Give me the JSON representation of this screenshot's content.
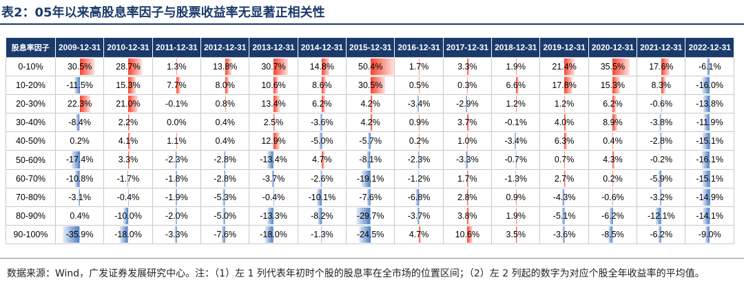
{
  "title": "表2：05年以来高股息率因子与股票收益率无显著正相关性",
  "note": "数据来源：Wind，广发证券发展研究中心。注：（1）左 1 列代表年初时个股的股息率在全市场的位置区间；（2）左 2 列起的数字为对应个股全年收益率的平均值。",
  "chart_data": {
    "type": "table",
    "corner_label": "股息率因子",
    "columns": [
      "2009-12-31",
      "2010-12-31",
      "2011-12-31",
      "2012-12-31",
      "2013-12-31",
      "2014-12-31",
      "2015-12-31",
      "2016-12-31",
      "2017-12-31",
      "2018-12-31",
      "2019-12-31",
      "2020-12-31",
      "2021-12-31",
      "2022-12-31"
    ],
    "rows": [
      {
        "label": "0-10%",
        "values": [
          30.5,
          28.7,
          1.3,
          13.8,
          30.7,
          14.8,
          50.4,
          1.7,
          3.3,
          1.9,
          21.4,
          35.5,
          17.6,
          -6.1
        ]
      },
      {
        "label": "10-20%",
        "values": [
          -11.5,
          15.3,
          7.7,
          8.0,
          10.6,
          8.6,
          30.5,
          0.5,
          0.3,
          6.6,
          17.8,
          15.3,
          8.3,
          -16.0
        ]
      },
      {
        "label": "20-30%",
        "values": [
          22.3,
          21.0,
          -0.1,
          0.8,
          13.4,
          6.2,
          4.2,
          -3.4,
          -2.9,
          1.2,
          1.2,
          6.2,
          -0.6,
          -13.8
        ]
      },
      {
        "label": "30-40%",
        "values": [
          -8.4,
          2.2,
          0.0,
          0.4,
          2.5,
          -3.6,
          4.2,
          0.9,
          3.7,
          -0.1,
          4.0,
          8.9,
          -3.8,
          -11.9
        ]
      },
      {
        "label": "40-50%",
        "values": [
          0.2,
          4.1,
          1.1,
          0.4,
          12.9,
          -5.0,
          -5.7,
          0.2,
          1.0,
          -3.4,
          6.3,
          0.4,
          -2.8,
          -15.1
        ]
      },
      {
        "label": "50-60%",
        "values": [
          -17.4,
          3.3,
          -2.3,
          -2.8,
          -13.4,
          4.7,
          -8.1,
          -2.3,
          -3.3,
          -0.7,
          0.7,
          4.3,
          -0.2,
          -16.1
        ]
      },
      {
        "label": "60-70%",
        "values": [
          -10.8,
          -1.7,
          -1.8,
          -2.8,
          -3.7,
          -2.6,
          -19.1,
          -1.2,
          1.7,
          -1.3,
          2.7,
          0.2,
          -5.9,
          -15.1
        ]
      },
      {
        "label": "70-80%",
        "values": [
          -3.1,
          -0.4,
          -1.9,
          -5.3,
          -0.4,
          -10.1,
          -7.6,
          -6.8,
          2.8,
          0.9,
          -4.3,
          -0.6,
          -3.2,
          -14.9
        ]
      },
      {
        "label": "80-90%",
        "values": [
          0.4,
          -10.0,
          -2.0,
          -5.0,
          -13.3,
          -8.2,
          -29.7,
          -3.7,
          3.8,
          1.9,
          -5.1,
          -6.2,
          -12.1,
          -14.1
        ]
      },
      {
        "label": "90-100%",
        "values": [
          -35.9,
          -18.0,
          -3.3,
          -7.6,
          -18.0,
          -1.3,
          -24.5,
          4.7,
          10.6,
          3.5,
          -3.6,
          -8.5,
          -6.2,
          -9.0
        ]
      }
    ],
    "unit": "%",
    "colors": {
      "header_bg": "#1a3a6b",
      "positive_bar": "#f8432f",
      "negative_bar": "#4f7fc5"
    }
  }
}
